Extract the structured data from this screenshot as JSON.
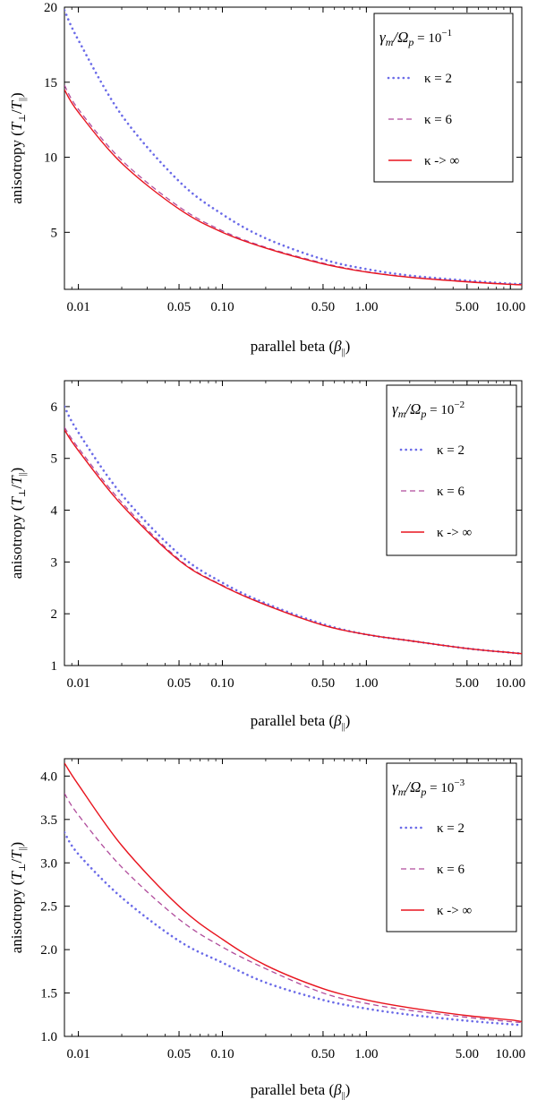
{
  "xlabel_text": "parallel beta",
  "xlabel_symbol": "β",
  "xlabel_sub": "||",
  "ylabel_text": "anisotropy",
  "ylabel_T_perp": "T",
  "ylabel_perp_sub": "⊥",
  "ylabel_T_par": "T",
  "ylabel_par_sub": "||",
  "legend_prefix": "γ",
  "legend_prefix_sub": "m",
  "legend_mid": "/Ω",
  "legend_mid_sub": "p",
  "legend_eq": " = 10",
  "colors": {
    "kappa2": "#6b6be8",
    "kappa6": "#b04c9c",
    "kappaInf": "#e8141e"
  },
  "chart_data": [
    {
      "type": "line",
      "xlabel": "parallel beta (β||)",
      "ylabel": "anisotropy (T⊥/T||)",
      "xscale": "log",
      "xlim": [
        0.008,
        12
      ],
      "ylim": [
        1.2,
        20
      ],
      "xticks": [
        0.01,
        0.05,
        0.1,
        0.5,
        1,
        5,
        10
      ],
      "xticklabels": [
        "0.01",
        "0.05",
        "0.10",
        "0.50",
        "1.00",
        "5.00",
        "10.00"
      ],
      "yticks": [
        5,
        10,
        15,
        20
      ],
      "yticklabels": [
        "5",
        "10",
        "15",
        "20"
      ],
      "legend_title_exp": "−1",
      "legend_position": "top-right",
      "series": [
        {
          "name": "κ = 2",
          "style": "dotted",
          "x": [
            0.008,
            0.01,
            0.02,
            0.05,
            0.1,
            0.2,
            0.5,
            1,
            2,
            5,
            10,
            12
          ],
          "y": [
            19.8,
            17.8,
            12.8,
            8.4,
            6.2,
            4.6,
            3.2,
            2.55,
            2.12,
            1.78,
            1.58,
            1.55
          ]
        },
        {
          "name": "κ = 6",
          "style": "dashed",
          "x": [
            0.008,
            0.01,
            0.02,
            0.05,
            0.1,
            0.2,
            0.5,
            1,
            2,
            5,
            10,
            12
          ],
          "y": [
            14.8,
            13.2,
            9.8,
            6.7,
            5.1,
            4.0,
            2.95,
            2.38,
            2.02,
            1.72,
            1.55,
            1.52
          ]
        },
        {
          "name": "κ -> ∞",
          "style": "solid",
          "x": [
            0.008,
            0.01,
            0.02,
            0.05,
            0.1,
            0.2,
            0.5,
            1,
            2,
            5,
            10,
            12
          ],
          "y": [
            14.5,
            13.0,
            9.6,
            6.55,
            5.0,
            3.95,
            2.9,
            2.35,
            2.0,
            1.7,
            1.53,
            1.5
          ]
        }
      ]
    },
    {
      "type": "line",
      "xlabel": "parallel beta (β||)",
      "ylabel": "anisotropy (T⊥/T||)",
      "xscale": "log",
      "xlim": [
        0.008,
        12
      ],
      "ylim": [
        1,
        6.5
      ],
      "xticks": [
        0.01,
        0.05,
        0.1,
        0.5,
        1,
        5,
        10
      ],
      "xticklabels": [
        "0.01",
        "0.05",
        "0.10",
        "0.50",
        "1.00",
        "5.00",
        "10.00"
      ],
      "yticks": [
        1,
        2,
        3,
        4,
        5,
        6
      ],
      "yticklabels": [
        "1",
        "2",
        "3",
        "4",
        "5",
        "6"
      ],
      "legend_title_exp": "−2",
      "legend_position": "top-right",
      "series": [
        {
          "name": "κ = 2",
          "style": "dotted",
          "x": [
            0.008,
            0.01,
            0.02,
            0.05,
            0.1,
            0.2,
            0.5,
            1,
            2,
            5,
            10,
            12
          ],
          "y": [
            6.0,
            5.5,
            4.3,
            3.15,
            2.6,
            2.2,
            1.8,
            1.6,
            1.48,
            1.33,
            1.25,
            1.23
          ]
        },
        {
          "name": "κ = 6",
          "style": "dashed",
          "x": [
            0.008,
            0.01,
            0.02,
            0.05,
            0.1,
            0.2,
            0.5,
            1,
            2,
            5,
            10,
            12
          ],
          "y": [
            5.6,
            5.2,
            4.15,
            3.05,
            2.55,
            2.18,
            1.78,
            1.6,
            1.48,
            1.33,
            1.25,
            1.23
          ]
        },
        {
          "name": "κ -> ∞",
          "style": "solid",
          "x": [
            0.008,
            0.01,
            0.02,
            0.05,
            0.1,
            0.2,
            0.5,
            1,
            2,
            5,
            10,
            12
          ],
          "y": [
            5.55,
            5.15,
            4.1,
            3.03,
            2.54,
            2.17,
            1.78,
            1.6,
            1.48,
            1.33,
            1.25,
            1.23
          ]
        }
      ]
    },
    {
      "type": "line",
      "xlabel": "parallel beta (β||)",
      "ylabel": "anisotropy (T⊥/T||)",
      "xscale": "log",
      "xlim": [
        0.008,
        12
      ],
      "ylim": [
        1,
        4.2
      ],
      "xticks": [
        0.01,
        0.05,
        0.1,
        0.5,
        1,
        5,
        10
      ],
      "xticklabels": [
        "0.01",
        "0.05",
        "0.10",
        "0.50",
        "1.00",
        "5.00",
        "10.00"
      ],
      "yticks": [
        1,
        1.5,
        2,
        2.5,
        3,
        3.5,
        4
      ],
      "yticklabels": [
        "1.0",
        "1.5",
        "2.0",
        "2.5",
        "3.0",
        "3.5",
        "4.0"
      ],
      "legend_title_exp": "−3",
      "legend_position": "top-right",
      "series": [
        {
          "name": "κ = 2",
          "style": "dotted",
          "x": [
            0.008,
            0.01,
            0.02,
            0.05,
            0.1,
            0.2,
            0.5,
            1,
            2,
            5,
            10,
            12
          ],
          "y": [
            3.35,
            3.1,
            2.6,
            2.1,
            1.85,
            1.62,
            1.42,
            1.32,
            1.25,
            1.18,
            1.14,
            1.13
          ]
        },
        {
          "name": "κ = 6",
          "style": "dashed",
          "x": [
            0.008,
            0.01,
            0.02,
            0.05,
            0.1,
            0.2,
            0.5,
            1,
            2,
            5,
            10,
            12
          ],
          "y": [
            3.8,
            3.55,
            2.95,
            2.35,
            2.03,
            1.78,
            1.5,
            1.38,
            1.3,
            1.22,
            1.17,
            1.16
          ]
        },
        {
          "name": "κ -> ∞",
          "style": "solid",
          "x": [
            0.008,
            0.01,
            0.02,
            0.05,
            0.1,
            0.2,
            0.5,
            1,
            2,
            5,
            10,
            12
          ],
          "y": [
            4.15,
            3.9,
            3.2,
            2.5,
            2.12,
            1.82,
            1.55,
            1.42,
            1.33,
            1.24,
            1.19,
            1.17
          ]
        }
      ]
    }
  ]
}
